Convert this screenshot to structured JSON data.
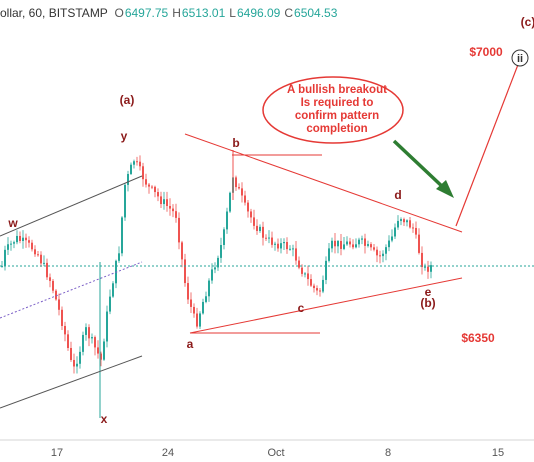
{
  "header": {
    "symbol_text": "ollar, 60, BITSTAMP",
    "open_label": "O",
    "open_value": "6497.75",
    "high_label": "H",
    "high_value": "6513.01",
    "low_label": "L",
    "low_value": "6496.09",
    "close_label": "C",
    "close_value": "6504.53"
  },
  "colors": {
    "up_candle": "#26a69a",
    "down_candle": "#ef5350",
    "annotation_red": "#e53935",
    "wave_label": "#8b1a1a",
    "channel_grey": "#555555",
    "arrow_green": "#2e7d32",
    "price_line": "#26a69a"
  },
  "chart_data": {
    "type": "candlestick",
    "timeframe": "60",
    "exchange": "BITSTAMP",
    "x_tick_labels": [
      "17",
      "24",
      "Oct",
      "8",
      "15"
    ],
    "wave_labels": [
      "w",
      "x",
      "y",
      "(a)",
      "a",
      "b",
      "c",
      "d",
      "e",
      "(b)",
      "(c)"
    ],
    "circled_label": "ii",
    "price_targets": [
      "$7000",
      "$6350"
    ],
    "callout_text": [
      "A bullish breakout",
      "Is required to",
      "confirm pattern",
      "completion"
    ],
    "last_close": 6504.53,
    "ylim": [
      6200,
      7100
    ],
    "trendlines": [
      "triangle-upper",
      "triangle-lower",
      "projection-(c)",
      "channel-upper",
      "channel-lower",
      "channel-mid"
    ],
    "candles_note": "approximate"
  }
}
